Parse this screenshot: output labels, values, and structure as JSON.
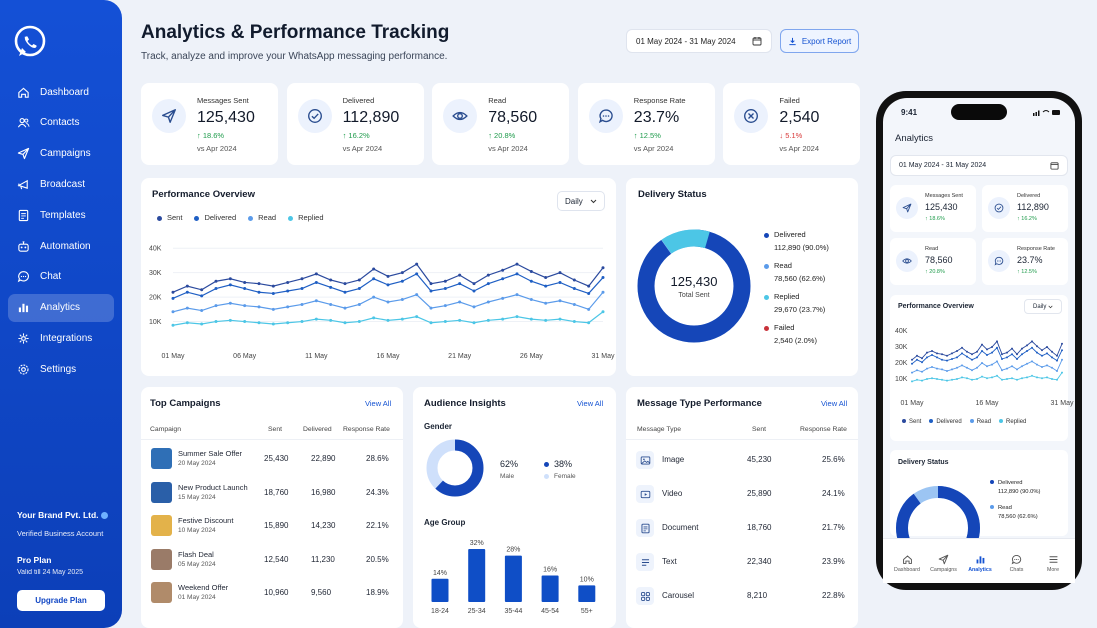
{
  "sidebar": {
    "items": [
      {
        "label": "Dashboard",
        "icon": "home-icon",
        "active": false
      },
      {
        "label": "Contacts",
        "icon": "users-icon",
        "active": false
      },
      {
        "label": "Campaigns",
        "icon": "send-icon",
        "active": false
      },
      {
        "label": "Broadcast",
        "icon": "broadcast-icon",
        "active": false
      },
      {
        "label": "Templates",
        "icon": "document-icon",
        "active": false
      },
      {
        "label": "Automation",
        "icon": "bot-icon",
        "active": false
      },
      {
        "label": "Chat",
        "icon": "chat-icon",
        "active": false
      },
      {
        "label": "Analytics",
        "icon": "bar-chart-icon",
        "active": true
      },
      {
        "label": "Integrations",
        "icon": "plug-icon",
        "active": false
      },
      {
        "label": "Settings",
        "icon": "gear-icon",
        "active": false
      }
    ],
    "brand_name": "Your Brand Pvt. Ltd.",
    "verified": "Verified Business Account",
    "plan": "Pro Plan",
    "valid": "Valid till 24 May 2025",
    "upgrade": "Upgrade Plan"
  },
  "header": {
    "title": "Analytics & Performance Tracking",
    "subtitle": "Track, analyze and improve your WhatsApp messaging performance.",
    "date_range": "01 May 2024 - 31 May 2024",
    "export": "Export Report"
  },
  "stats": [
    {
      "label": "Messages Sent",
      "value": "125,430",
      "change": "↑ 18.6%",
      "compare": "vs Apr 2024",
      "positive": true,
      "icon": "send-icon"
    },
    {
      "label": "Delivered",
      "value": "112,890",
      "change": "↑ 16.2%",
      "compare": "vs Apr 2024",
      "positive": true,
      "icon": "check-circle-icon"
    },
    {
      "label": "Read",
      "value": "78,560",
      "change": "↑ 20.8%",
      "compare": "vs Apr 2024",
      "positive": true,
      "icon": "eye-icon"
    },
    {
      "label": "Response Rate",
      "value": "23.7%",
      "change": "↑ 12.5%",
      "compare": "vs Apr 2024",
      "positive": true,
      "icon": "chat-icon"
    },
    {
      "label": "Failed",
      "value": "2,540",
      "change": "↓ 5.1%",
      "compare": "vs Apr 2024",
      "positive": false,
      "icon": "x-circle-icon"
    }
  ],
  "performance": {
    "title": "Performance Overview",
    "period": "Daily",
    "colors": {
      "Sent": "#2b4a9e",
      "Delivered": "#1f5fc4",
      "Read": "#5b9bea",
      "Replied": "#4cc6e6"
    }
  },
  "chart_data": [
    {
      "type": "line",
      "title": "Performance Overview",
      "x": [
        "01 May",
        "02 May",
        "03 May",
        "04 May",
        "05 May",
        "06 May",
        "07 May",
        "08 May",
        "09 May",
        "10 May",
        "11 May",
        "12 May",
        "13 May",
        "14 May",
        "15 May",
        "16 May",
        "17 May",
        "18 May",
        "19 May",
        "20 May",
        "21 May",
        "22 May",
        "23 May",
        "24 May",
        "25 May",
        "26 May",
        "27 May",
        "28 May",
        "29 May",
        "30 May",
        "31 May"
      ],
      "x_ticks": [
        "01 May",
        "06 May",
        "11 May",
        "16 May",
        "21 May",
        "26 May",
        "31 May"
      ],
      "y_ticks": [
        "10K",
        "20K",
        "30K",
        "40K"
      ],
      "ylim": [
        0,
        45000
      ],
      "legend": [
        "Sent",
        "Delivered",
        "Read",
        "Replied"
      ],
      "series": [
        {
          "name": "Sent",
          "values": [
            22000,
            24500,
            23000,
            26500,
            27500,
            26000,
            25500,
            24500,
            26000,
            27500,
            29500,
            27000,
            25500,
            27000,
            31500,
            28500,
            30000,
            33500,
            25500,
            26500,
            29000,
            25500,
            29000,
            31000,
            33500,
            30500,
            28000,
            30000,
            27000,
            24500,
            32000
          ]
        },
        {
          "name": "Delivered",
          "values": [
            19500,
            22000,
            20500,
            23500,
            25000,
            23500,
            22000,
            21500,
            22500,
            23500,
            26000,
            24000,
            22000,
            23500,
            27500,
            25000,
            26500,
            29500,
            22500,
            23500,
            25500,
            22500,
            25500,
            27500,
            29500,
            26500,
            24500,
            26000,
            23500,
            21500,
            28000
          ]
        },
        {
          "name": "Read",
          "values": [
            14000,
            15500,
            14500,
            16500,
            17500,
            16500,
            16000,
            15000,
            16000,
            17000,
            18500,
            17000,
            15500,
            17000,
            20000,
            18000,
            19000,
            21000,
            15500,
            16500,
            18000,
            16000,
            18000,
            19500,
            21000,
            19000,
            17500,
            18500,
            17000,
            15000,
            22000
          ]
        },
        {
          "name": "Replied",
          "values": [
            8500,
            9500,
            9000,
            10000,
            10500,
            10000,
            9500,
            9000,
            9500,
            10000,
            11000,
            10500,
            9500,
            10000,
            11500,
            10500,
            11000,
            12000,
            9500,
            10000,
            10500,
            9500,
            10500,
            11000,
            12000,
            11000,
            10500,
            11000,
            10000,
            9500,
            14000
          ]
        }
      ]
    },
    {
      "type": "pie",
      "title": "Delivery Status",
      "center_value": "125,430",
      "center_label": "Total Sent",
      "slices": [
        {
          "name": "Delivered",
          "value": 112890,
          "percent": "112,890 (90.0%)",
          "color": "#1546b8"
        },
        {
          "name": "Read",
          "value": 78560,
          "percent": "78,560 (62.6%)",
          "color": "#5b9bea"
        },
        {
          "name": "Replied",
          "value": 29670,
          "percent": "29,670 (23.7%)",
          "color": "#4cc6e6"
        },
        {
          "name": "Failed",
          "value": 2540,
          "percent": "2,540 (2.0%)",
          "color": "#c8323a"
        }
      ]
    },
    {
      "type": "pie",
      "title": "Gender",
      "slices": [
        {
          "name": "Male",
          "value": 62,
          "label": "62%"
        },
        {
          "name": "Female",
          "value": 38,
          "label": "38%"
        }
      ]
    },
    {
      "type": "bar",
      "title": "Age Group",
      "categories": [
        "18-24",
        "25-34",
        "35-44",
        "45-54",
        "55+"
      ],
      "values": [
        14,
        32,
        28,
        16,
        10
      ],
      "labels": [
        "14%",
        "32%",
        "28%",
        "16%",
        "10%"
      ],
      "ylim": [
        0,
        35
      ]
    }
  ],
  "campaigns": {
    "title": "Top Campaigns",
    "view_all": "View All",
    "headers": [
      "Campaign",
      "Sent",
      "Delivered",
      "Response Rate"
    ],
    "rows": [
      {
        "name": "Summer Sale Offer",
        "date": "20 May 2024",
        "sent": "25,430",
        "delivered": "22,890",
        "rate": "28.6%",
        "thumb": "#2f6fb6"
      },
      {
        "name": "New Product Launch",
        "date": "15 May 2024",
        "sent": "18,760",
        "delivered": "16,980",
        "rate": "24.3%",
        "thumb": "#2a5fa8"
      },
      {
        "name": "Festive Discount",
        "date": "10 May 2024",
        "sent": "15,890",
        "delivered": "14,230",
        "rate": "22.1%",
        "thumb": "#e3b24a"
      },
      {
        "name": "Flash Deal",
        "date": "05 May 2024",
        "sent": "12,540",
        "delivered": "11,230",
        "rate": "20.5%",
        "thumb": "#9a7b68"
      },
      {
        "name": "Weekend Offer",
        "date": "01 May 2024",
        "sent": "10,960",
        "delivered": "9,560",
        "rate": "18.9%",
        "thumb": "#b08b6a"
      }
    ]
  },
  "audience": {
    "title": "Audience Insights",
    "view_all": "View All",
    "gender_title": "Gender",
    "male_pct": "62%",
    "male": "Male",
    "female_pct": "38%",
    "female": "Female",
    "age_title": "Age Group"
  },
  "message_types": {
    "title": "Message Type Performance",
    "view_all": "View All",
    "headers": [
      "Message Type",
      "Sent",
      "Response Rate"
    ],
    "rows": [
      {
        "type": "Image",
        "sent": "45,230",
        "rate": "25.6%",
        "icon": "image-icon"
      },
      {
        "type": "Video",
        "sent": "25,890",
        "rate": "24.1%",
        "icon": "video-icon"
      },
      {
        "type": "Document",
        "sent": "18,760",
        "rate": "21.7%",
        "icon": "document-icon"
      },
      {
        "type": "Text",
        "sent": "22,340",
        "rate": "23.9%",
        "icon": "text-icon"
      },
      {
        "type": "Carousel",
        "sent": "8,210",
        "rate": "22.8%",
        "icon": "grid-icon"
      }
    ]
  },
  "phone": {
    "time": "9:41",
    "title": "Analytics",
    "date_range": "01 May 2024 - 31 May 2024",
    "stats": [
      {
        "label": "Messages Sent",
        "value": "125,430",
        "change": "↑ 18.6%"
      },
      {
        "label": "Delivered",
        "value": "112,890",
        "change": "↑ 16.2%"
      },
      {
        "label": "Read",
        "value": "78,560",
        "change": "↑ 20.8%"
      },
      {
        "label": "Response Rate",
        "value": "23.7%",
        "change": "↑ 12.5%"
      }
    ],
    "perf_title": "Performance Overview",
    "period": "Daily",
    "y_ticks": [
      "10K",
      "20K",
      "30K",
      "40K"
    ],
    "x_ticks": [
      "01 May",
      "16 May",
      "31 May"
    ],
    "legend": [
      "Sent",
      "Delivered",
      "Read",
      "Replied"
    ],
    "delivery_title": "Delivery Status",
    "delivery": [
      {
        "name": "Delivered",
        "value": "112,890 (90.0%)"
      },
      {
        "name": "Read",
        "value": "78,560 (62.6%)"
      }
    ],
    "tabs": [
      {
        "label": "Dashboard",
        "icon": "home-icon",
        "active": false
      },
      {
        "label": "Campaigns",
        "icon": "send-icon",
        "active": false
      },
      {
        "label": "Analytics",
        "icon": "bar-chart-icon",
        "active": true
      },
      {
        "label": "Chats",
        "icon": "chat-icon",
        "active": false
      },
      {
        "label": "More",
        "icon": "menu-icon",
        "active": false
      }
    ]
  }
}
